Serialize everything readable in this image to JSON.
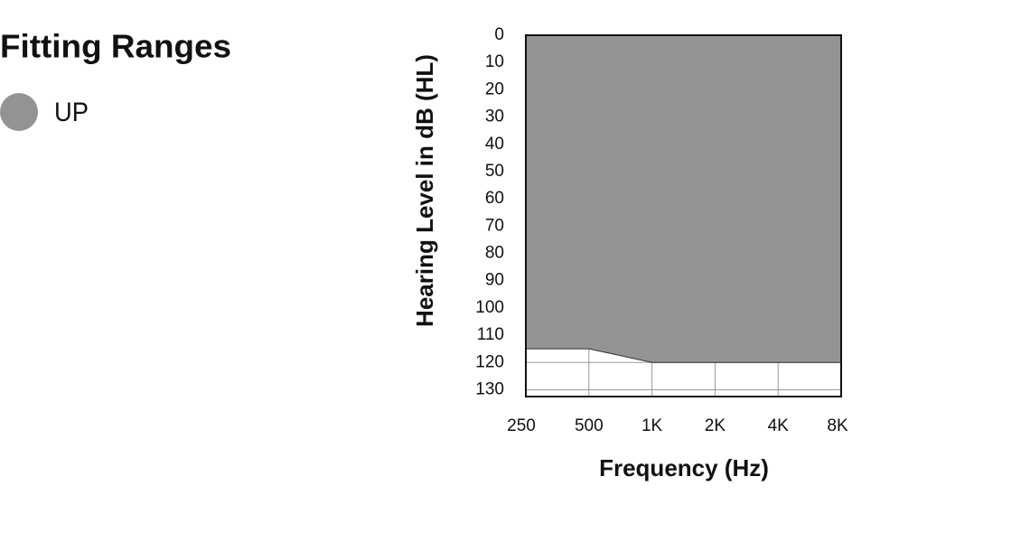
{
  "chart_data": {
    "type": "area",
    "title": "Fitting Ranges",
    "x_label": "Frequency (Hz)",
    "y_label": "Hearing Level in dB (HL)",
    "x": [
      250,
      500,
      1000,
      2000,
      4000,
      8000
    ],
    "series": [
      {
        "name": "UP",
        "color": "#939295",
        "values": [
          115,
          115,
          120,
          120,
          120,
          120
        ]
      }
    ],
    "xlim": [
      250,
      8000
    ],
    "xlog": true,
    "xticks": [
      250,
      500,
      {
        "value": 1000,
        "label": "1K"
      },
      {
        "value": 2000,
        "label": "2K"
      },
      {
        "value": 4000,
        "label": "4K"
      },
      {
        "value": 8000,
        "label": "8K"
      }
    ],
    "ylim": [
      0,
      132.5
    ],
    "yinverted": true,
    "yticks": [
      0,
      10,
      20,
      30,
      40,
      50,
      60,
      70,
      80,
      90,
      100,
      110,
      120,
      130
    ],
    "grid": true,
    "legend": "top-left"
  }
}
